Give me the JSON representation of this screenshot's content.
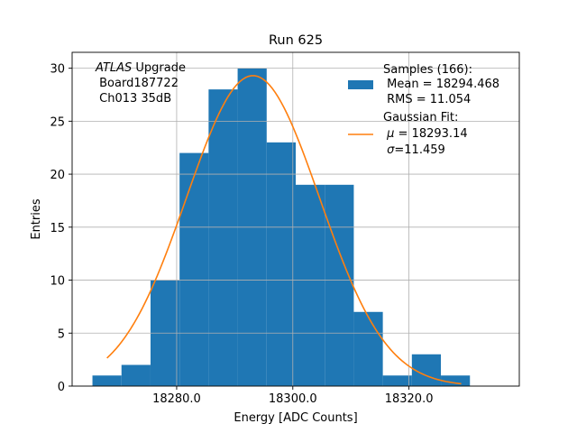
{
  "chart_data": {
    "type": "bar",
    "title": "Run 625",
    "xlabel": "Energy [ADC Counts]",
    "ylabel": "Entries",
    "xlim": [
      18262,
      18339
    ],
    "ylim": [
      0,
      31.5
    ],
    "grid": true,
    "x_ticks": [
      18280.0,
      18300.0,
      18320.0
    ],
    "x_tick_labels": [
      "18280.0",
      "18300.0",
      "18320.0"
    ],
    "y_ticks": [
      0,
      5,
      10,
      15,
      20,
      25,
      30
    ],
    "y_tick_labels": [
      "0",
      "5",
      "10",
      "15",
      "20",
      "25",
      "30"
    ],
    "histogram": {
      "bin_edges": [
        18265.5,
        18270.5,
        18275.5,
        18280.5,
        18285.5,
        18290.5,
        18295.5,
        18300.5,
        18305.5,
        18310.5,
        18315.5,
        18320.5,
        18325.5,
        18330.5
      ],
      "counts": [
        1,
        2,
        10,
        22,
        28,
        30,
        23,
        19,
        19,
        7,
        1,
        3,
        1
      ],
      "color": "#1f77b4"
    },
    "fit": {
      "type": "gaussian",
      "mu": 18293.14,
      "sigma": 11.459,
      "amplitude": 29.3,
      "x_range": [
        18268,
        18329
      ],
      "color": "#ff7f0e"
    },
    "annotation": {
      "italic": "ATLAS",
      "line1_rest": " Upgrade",
      "line2": " Board187722",
      "line3": " Ch013 35dB"
    },
    "legend": {
      "placement": "top-right",
      "hist_lines": [
        "Samples (166):",
        " Mean = 18294.468",
        " RMS = 11.054"
      ],
      "fit_title": "Gaussian Fit:",
      "fit_mu_sym": "μ",
      "fit_mu_rest": " = 18293.14",
      "fit_sigma_sym": "σ",
      "fit_sigma_rest": "=11.459"
    }
  }
}
